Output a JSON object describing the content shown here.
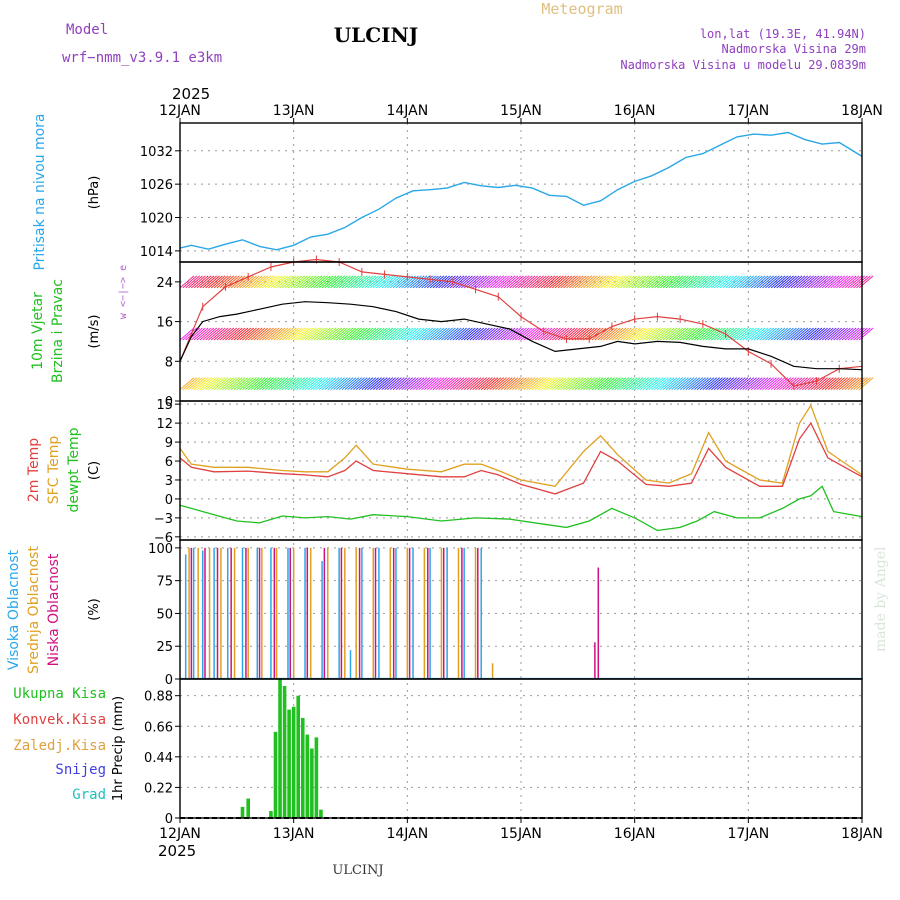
{
  "header": {
    "model_label": "Model",
    "model_name": "wrf−nmm_v3.9.1  e3km",
    "station": "ULCINJ",
    "product": "Meteogram",
    "lonlat": "lon,lat (19.3E, 41.94N)",
    "elevation": "Nadmorska Visina 29m",
    "model_elevation": "Nadmorska Visina u modelu 29.0839m",
    "footer_station": "ULCINJ",
    "watermark": "made by Angel"
  },
  "colors": {
    "pressure": "#2aa7e8",
    "temp2m": "#e04040",
    "sfc": "#e0a020",
    "dew": "#20c020",
    "wind_gust": "#e04040",
    "wind_speed": "#000000",
    "precip": "#20c020",
    "cloud_high": "#2aa7e8",
    "cloud_mid": "#e0a020",
    "cloud_low": "#d01080",
    "purple": "#9040c0",
    "orange": "#e0a040"
  },
  "chart_data": {
    "type": "line",
    "x_axis": {
      "year": "2025",
      "start_label": "12JAN",
      "ticks": [
        "12JAN",
        "13JAN",
        "14JAN",
        "15JAN",
        "16JAN",
        "17JAN",
        "18JAN"
      ],
      "range_days": [
        0,
        6
      ]
    },
    "panels": [
      {
        "name": "pressure",
        "labels": [
          "Pritisak na nivou mora"
        ],
        "unit": "(hPa)",
        "ylim": [
          1012,
          1037
        ],
        "yticks": [
          "1014",
          "1020",
          "1026",
          "1032"
        ],
        "series": [
          {
            "name": "Pritisak na nivou mora",
            "x": [
              0,
              0.1,
              0.25,
              0.4,
              0.55,
              0.7,
              0.85,
              1.0,
              1.15,
              1.3,
              1.45,
              1.6,
              1.75,
              1.9,
              2.05,
              2.2,
              2.35,
              2.5,
              2.65,
              2.8,
              2.95,
              3.1,
              3.25,
              3.4,
              3.55,
              3.7,
              3.85,
              4.0,
              4.15,
              4.3,
              4.45,
              4.6,
              4.75,
              4.9,
              5.05,
              5.2,
              5.35,
              5.5,
              5.65,
              5.8,
              6.0
            ],
            "values": [
              1014.5,
              1015.0,
              1014.3,
              1015.2,
              1016.0,
              1014.8,
              1014.2,
              1015.0,
              1016.5,
              1017.0,
              1018.2,
              1020.0,
              1021.5,
              1023.5,
              1024.8,
              1025.0,
              1025.3,
              1026.3,
              1025.7,
              1025.4,
              1025.8,
              1025.3,
              1024.0,
              1023.8,
              1022.2,
              1023.0,
              1025.0,
              1026.5,
              1027.5,
              1029.0,
              1030.8,
              1031.5,
              1033.0,
              1034.5,
              1035.0,
              1034.8,
              1035.3,
              1034.0,
              1033.2,
              1033.5,
              1031.0
            ]
          }
        ]
      },
      {
        "name": "wind",
        "labels": [
          "10m Vjetar",
          "Brzina i Pravac"
        ],
        "unit": "(m/s)",
        "compass": "w  <−|−>  e",
        "ylim": [
          0,
          28
        ],
        "yticks": [
          "0",
          "8",
          "16",
          "24"
        ],
        "series": [
          {
            "name": "Brzina",
            "x": [
              0,
              0.1,
              0.2,
              0.35,
              0.5,
              0.7,
              0.9,
              1.1,
              1.3,
              1.5,
              1.7,
              1.9,
              2.1,
              2.3,
              2.5,
              2.7,
              2.9,
              3.1,
              3.3,
              3.5,
              3.7,
              3.85,
              4.0,
              4.2,
              4.4,
              4.6,
              4.8,
              5.0,
              5.2,
              5.4,
              5.6,
              5.8,
              6.0
            ],
            "values": [
              8,
              13,
              16,
              17,
              17.5,
              18.5,
              19.5,
              20,
              19.8,
              19.5,
              19,
              18,
              16.5,
              16,
              16.5,
              15.5,
              14.5,
              12,
              10,
              10.5,
              11,
              12,
              11.5,
              12,
              11.8,
              11,
              10.5,
              10.5,
              9,
              7,
              6.5,
              6.5,
              6.3
            ]
          },
          {
            "name": "Udar",
            "x": [
              0,
              0.2,
              0.4,
              0.6,
              0.8,
              1.0,
              1.2,
              1.4,
              1.6,
              1.8,
              2.0,
              2.2,
              2.4,
              2.6,
              2.8,
              3.0,
              3.2,
              3.4,
              3.6,
              3.8,
              4.0,
              4.2,
              4.4,
              4.6,
              4.8,
              5.0,
              5.2,
              5.4,
              5.6,
              5.8,
              6.0
            ],
            "values": [
              8,
              19,
              23,
              25,
              27,
              28,
              28.5,
              28,
              26,
              25.5,
              25,
              24.5,
              24,
              22.5,
              21,
              17,
              14,
              12.5,
              12.5,
              15,
              16.5,
              17,
              16.5,
              15.5,
              13.5,
              10,
              7.5,
              3,
              4,
              6.5,
              7
            ]
          }
        ]
      },
      {
        "name": "temperature",
        "labels": [
          "2m Temp",
          "SFC Temp",
          "dewpt Temp"
        ],
        "unit": "(C)",
        "ylim": [
          -6.5,
          15.5
        ],
        "yticks": [
          "−6",
          "−3",
          "0",
          "3",
          "6",
          "9",
          "12",
          "15"
        ],
        "series": [
          {
            "name": "2m Temp",
            "x": [
              0,
              0.1,
              0.3,
              0.6,
              0.9,
              1.1,
              1.3,
              1.45,
              1.55,
              1.7,
              2.0,
              2.3,
              2.5,
              2.65,
              2.8,
              3.0,
              3.3,
              3.55,
              3.7,
              3.85,
              4.1,
              4.3,
              4.5,
              4.65,
              4.8,
              5.1,
              5.3,
              5.45,
              5.55,
              5.7,
              6.0
            ],
            "values": [
              6.5,
              5,
              4.3,
              4.4,
              4.0,
              3.8,
              3.5,
              4.5,
              6.0,
              4.5,
              4.0,
              3.5,
              3.5,
              4.5,
              3.8,
              2.3,
              0.8,
              2.5,
              7.5,
              6.0,
              2.3,
              2.0,
              2.5,
              8.0,
              5.0,
              2.0,
              2.0,
              9.5,
              12.0,
              6.5,
              3.5
            ]
          },
          {
            "name": "SFC Temp",
            "x": [
              0,
              0.1,
              0.3,
              0.6,
              0.9,
              1.1,
              1.3,
              1.45,
              1.55,
              1.7,
              2.0,
              2.3,
              2.5,
              2.65,
              2.8,
              3.0,
              3.3,
              3.55,
              3.7,
              3.85,
              4.1,
              4.3,
              4.5,
              4.65,
              4.8,
              5.1,
              5.3,
              5.45,
              5.55,
              5.7,
              6.0
            ],
            "values": [
              8,
              5.5,
              5.0,
              5.0,
              4.5,
              4.3,
              4.3,
              6.5,
              8.5,
              5.5,
              4.7,
              4.3,
              5.5,
              5.5,
              4.5,
              3.0,
              2.0,
              7.5,
              10.0,
              7.0,
              3.0,
              2.5,
              4.0,
              10.5,
              6.0,
              3.0,
              2.5,
              12.0,
              14.8,
              7.5,
              3.8
            ]
          },
          {
            "name": "dewpt Temp",
            "x": [
              0,
              0.1,
              0.3,
              0.5,
              0.7,
              0.9,
              1.1,
              1.3,
              1.5,
              1.7,
              2.0,
              2.3,
              2.6,
              2.9,
              3.2,
              3.4,
              3.6,
              3.8,
              4.0,
              4.2,
              4.4,
              4.55,
              4.7,
              4.9,
              5.1,
              5.3,
              5.45,
              5.55,
              5.65,
              5.75,
              6.0
            ],
            "values": [
              -1,
              -1.5,
              -2.5,
              -3.5,
              -3.8,
              -2.7,
              -3.0,
              -2.8,
              -3.2,
              -2.5,
              -2.8,
              -3.5,
              -3.0,
              -3.2,
              -4.0,
              -4.5,
              -3.5,
              -1.5,
              -3.0,
              -5.0,
              -4.5,
              -3.5,
              -2.0,
              -3.0,
              -3.0,
              -1.5,
              0.0,
              0.5,
              2.0,
              -2.0,
              -2.8
            ]
          }
        ]
      },
      {
        "name": "cloud",
        "labels": [
          "Visoka Oblacnost",
          "Srednja Oblacnost",
          "Niska Oblacnost"
        ],
        "unit": "(%)",
        "ylim": [
          0,
          106
        ],
        "yticks": [
          "0",
          "25",
          "50",
          "75",
          "100"
        ],
        "series": [
          {
            "name": "Visoka Oblacnost",
            "x": [
              0.05,
              0.12,
              0.2,
              0.3,
              0.42,
              0.55,
              0.68,
              0.8,
              0.95,
              1.1,
              1.25,
              1.4,
              1.5,
              1.6,
              1.75,
              1.9,
              2.05,
              2.2,
              2.35,
              2.5,
              2.65
            ],
            "values": [
              95,
              100,
              98,
              100,
              100,
              100,
              100,
              100,
              100,
              100,
              90,
              100,
              22,
              100,
              100,
              100,
              100,
              100,
              100,
              100,
              100
            ]
          },
          {
            "name": "Srednja Oblacnost",
            "x": [
              0.08,
              0.16,
              0.26,
              0.36,
              0.48,
              0.6,
              0.72,
              0.85,
              1.0,
              1.15,
              1.3,
              1.45,
              1.55,
              1.7,
              1.85,
              2.0,
              2.15,
              2.3,
              2.45,
              2.6,
              2.75
            ],
            "values": [
              100,
              100,
              100,
              100,
              100,
              100,
              100,
              100,
              100,
              100,
              100,
              100,
              100,
              100,
              100,
              100,
              100,
              100,
              100,
              100,
              12
            ]
          },
          {
            "name": "Niska Oblacnost",
            "x": [
              0.1,
              0.22,
              0.33,
              0.45,
              0.58,
              0.7,
              0.83,
              0.97,
              1.12,
              1.27,
              1.42,
              1.58,
              1.72,
              1.88,
              2.02,
              2.18,
              2.32,
              2.48,
              2.62,
              3.65,
              3.68
            ],
            "values": [
              100,
              100,
              100,
              100,
              100,
              100,
              100,
              100,
              100,
              100,
              100,
              100,
              100,
              100,
              100,
              100,
              100,
              100,
              100,
              28,
              85
            ]
          }
        ]
      },
      {
        "name": "precip",
        "labels": [
          "Ukupna Kisa",
          "Konvek.Kisa",
          "Zaledj.Kisa",
          "Snijeg",
          "Grad"
        ],
        "unit": "1hr Precip (mm)",
        "ylim": [
          0,
          1.0
        ],
        "yticks": [
          "0",
          "0.22",
          "0.44",
          "0.66",
          "0.88"
        ],
        "series": [
          {
            "name": "Ukupna Kisa",
            "x": [
              0.55,
              0.6,
              0.8,
              0.84,
              0.88,
              0.92,
              0.96,
              1.0,
              1.04,
              1.08,
              1.12,
              1.16,
              1.2,
              1.24
            ],
            "values": [
              0.08,
              0.14,
              0.05,
              0.62,
              1.0,
              0.95,
              0.78,
              0.8,
              0.88,
              0.72,
              0.6,
              0.5,
              0.58,
              0.06
            ]
          }
        ]
      }
    ]
  }
}
